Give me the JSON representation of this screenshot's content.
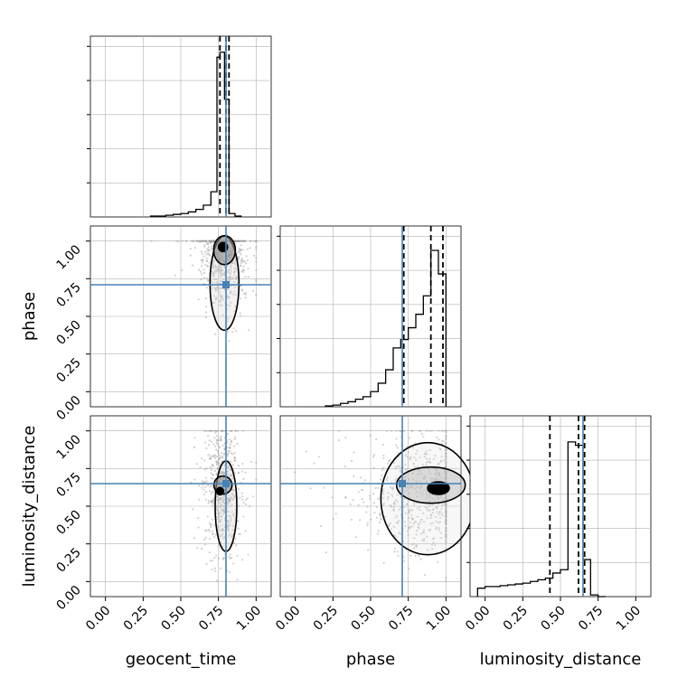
{
  "chart_data": {
    "type": "corner",
    "parameters": [
      "geocent_time",
      "phase",
      "luminosity_distance"
    ],
    "axis_labels": {
      "geocent_time": "geocent_time",
      "phase": "phase",
      "luminosity_distance": "luminosity_distance"
    },
    "range": [
      0.0,
      1.0
    ],
    "ticks": [
      "0.00",
      "0.25",
      "0.50",
      "0.75",
      "1.00"
    ],
    "grid": true,
    "truths": {
      "geocent_time": 0.8,
      "phase": 0.71,
      "luminosity_distance": 0.65
    },
    "colors": {
      "truth": "#4682b4",
      "hist": "#000000",
      "contour": "#000000",
      "grid": "#b0b0b0",
      "scatter": "#9a9a9a"
    },
    "histograms": {
      "geocent_time": {
        "domain": [
          -0.1,
          1.1
        ],
        "edges": [
          0.3,
          0.35,
          0.4,
          0.45,
          0.5,
          0.55,
          0.6,
          0.65,
          0.7,
          0.74,
          0.76,
          0.79,
          0.82,
          0.86,
          0.9
        ],
        "counts": [
          0.005,
          0.005,
          0.01,
          0.015,
          0.02,
          0.03,
          0.045,
          0.07,
          0.15,
          0.95,
          0.98,
          0.7,
          0.02,
          0.005
        ],
        "quantiles": [
          0.76,
          0.8,
          0.82
        ]
      },
      "phase": {
        "domain": [
          -0.1,
          1.1
        ],
        "edges": [
          0.2,
          0.25,
          0.3,
          0.35,
          0.4,
          0.45,
          0.5,
          0.55,
          0.6,
          0.65,
          0.7,
          0.75,
          0.8,
          0.85,
          0.9,
          0.95,
          1.0
        ],
        "counts": [
          0.005,
          0.01,
          0.02,
          0.03,
          0.045,
          0.06,
          0.09,
          0.14,
          0.22,
          0.35,
          0.4,
          0.47,
          0.55,
          0.66,
          0.93,
          0.79
        ],
        "quantiles": [
          0.72,
          0.9,
          0.98
        ]
      },
      "luminosity_distance": {
        "domain": [
          -0.1,
          1.1
        ],
        "edges": [
          -0.05,
          0.0,
          0.05,
          0.1,
          0.15,
          0.2,
          0.25,
          0.3,
          0.35,
          0.4,
          0.45,
          0.5,
          0.55,
          0.6,
          0.65,
          0.7,
          0.75,
          0.8
        ],
        "counts": [
          0.05,
          0.06,
          0.06,
          0.065,
          0.07,
          0.075,
          0.08,
          0.09,
          0.1,
          0.11,
          0.14,
          0.16,
          0.92,
          0.9,
          0.22,
          0.01,
          0.0
        ],
        "quantiles": [
          0.43,
          0.62,
          0.66
        ]
      }
    },
    "scatter": {
      "phase_vs_geocent_time": {
        "center": [
          0.78,
          0.93
        ],
        "spread": [
          0.07,
          0.18
        ],
        "n": 700
      },
      "luminosity_distance_vs_geocent_time": {
        "center": [
          0.78,
          0.6
        ],
        "spread": [
          0.05,
          0.2
        ],
        "n": 600
      },
      "luminosity_distance_vs_phase": {
        "center": [
          0.88,
          0.6
        ],
        "spread": [
          0.18,
          0.18
        ],
        "n": 700
      }
    }
  }
}
